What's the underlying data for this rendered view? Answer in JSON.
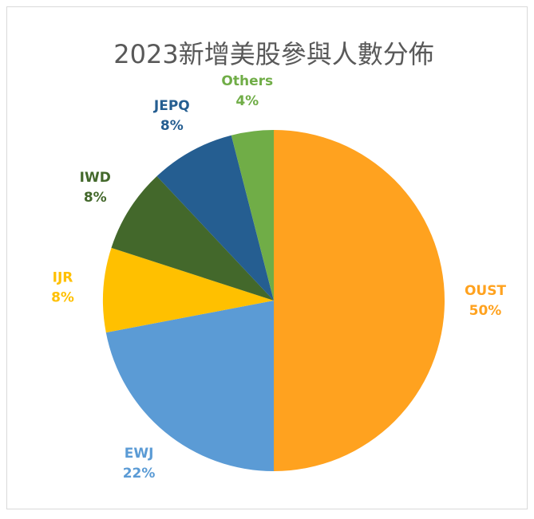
{
  "chart_data": {
    "type": "pie",
    "title": "2023新增美股參與人數分佈",
    "categories": [
      "OUST",
      "EWJ",
      "IJR",
      "IWD",
      "JEPQ",
      "Others"
    ],
    "values": [
      50,
      22,
      8,
      8,
      8,
      4
    ],
    "value_labels": [
      "50%",
      "22%",
      "8%",
      "8%",
      "8%",
      "4%"
    ],
    "colors": [
      "#ffa21f",
      "#5b9bd5",
      "#ffc000",
      "#43682b",
      "#255e91",
      "#70ad47"
    ]
  }
}
